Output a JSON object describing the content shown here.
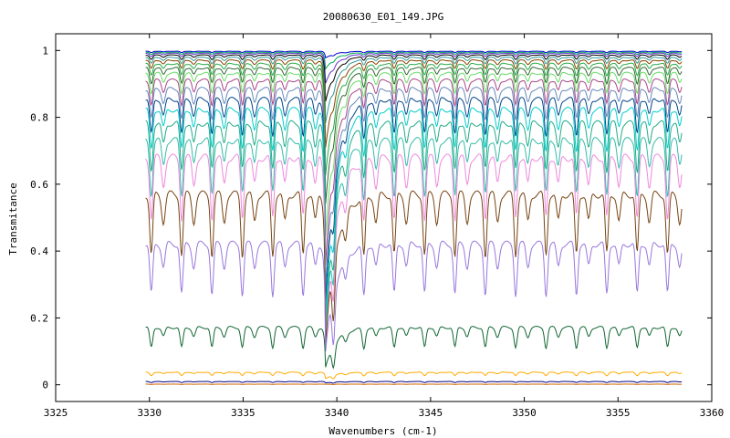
{
  "chart_data": {
    "type": "line",
    "title": "20080630_E01_149.JPG",
    "xlabel": "Wavenumbers (cm-1)",
    "ylabel": "Transmitance",
    "xlim": [
      3325,
      3360
    ],
    "ylim": [
      -0.05,
      1.05
    ],
    "x_ticks": [
      3325,
      3330,
      3335,
      3340,
      3345,
      3350,
      3355,
      3360
    ],
    "y_ticks": [
      0,
      0.2,
      0.4,
      0.6,
      0.8,
      1
    ],
    "x_tick_labels": [
      "3325",
      "3330",
      "3335",
      "3340",
      "3345",
      "3350",
      "3355",
      "3360"
    ],
    "y_tick_labels": [
      "0",
      "0.2",
      "0.4",
      "0.6",
      "0.8",
      "1"
    ],
    "grid": false,
    "legend": "none",
    "x_range_data": [
      3329.8,
      3358.4
    ],
    "major_dip_x": 3339.4,
    "line_spacing_cm": 1.62,
    "series": [
      {
        "baseline": 0.998,
        "dip": 0.004,
        "major_dip": 0.02,
        "color": "#0000cc"
      },
      {
        "baseline": 0.995,
        "dip": 0.006,
        "major_dip": 0.05,
        "color": "#00aa55"
      },
      {
        "baseline": 0.992,
        "dip": 0.009,
        "major_dip": 0.09,
        "color": "#6633cc"
      },
      {
        "baseline": 0.987,
        "dip": 0.013,
        "major_dip": 0.14,
        "color": "#000000"
      },
      {
        "baseline": 0.98,
        "dip": 0.018,
        "major_dip": 0.2,
        "color": "#339999"
      },
      {
        "baseline": 0.972,
        "dip": 0.025,
        "major_dip": 0.27,
        "color": "#884400"
      },
      {
        "baseline": 0.962,
        "dip": 0.034,
        "major_dip": 0.35,
        "color": "#22aa44"
      },
      {
        "baseline": 0.95,
        "dip": 0.045,
        "major_dip": 0.43,
        "color": "#336633"
      },
      {
        "baseline": 0.935,
        "dip": 0.058,
        "major_dip": 0.52,
        "color": "#66dd66"
      },
      {
        "baseline": 0.915,
        "dip": 0.072,
        "major_dip": 0.6,
        "color": "#aa4488"
      },
      {
        "baseline": 0.89,
        "dip": 0.088,
        "major_dip": 0.67,
        "color": "#6688bb"
      },
      {
        "baseline": 0.86,
        "dip": 0.105,
        "major_dip": 0.72,
        "color": "#004488"
      },
      {
        "baseline": 0.83,
        "dip": 0.12,
        "major_dip": 0.76,
        "color": "#00cccc"
      },
      {
        "baseline": 0.79,
        "dip": 0.14,
        "major_dip": 0.78,
        "color": "#22aa88"
      },
      {
        "baseline": 0.74,
        "dip": 0.16,
        "major_dip": 0.78,
        "color": "#33bbaa"
      },
      {
        "baseline": 0.69,
        "dip": 0.18,
        "major_dip": 0.8,
        "color": "#ee88dd"
      },
      {
        "baseline": 0.58,
        "dip": 0.18,
        "major_dip": 0.76,
        "color": "#774411"
      },
      {
        "baseline": 0.43,
        "dip": 0.15,
        "major_dip": 0.75,
        "color": "#9977dd"
      },
      {
        "baseline": 0.175,
        "dip": 0.06,
        "major_dip": 0.7,
        "color": "#116633"
      },
      {
        "baseline": 0.038,
        "dip": 0.01,
        "major_dip": 0.5,
        "color": "#ffaa00"
      },
      {
        "baseline": 0.01,
        "dip": 0.003,
        "major_dip": 0.4,
        "color": "#000088"
      },
      {
        "baseline": 0.002,
        "dip": 0.001,
        "major_dip": 0.2,
        "color": "#cc6600"
      }
    ]
  }
}
